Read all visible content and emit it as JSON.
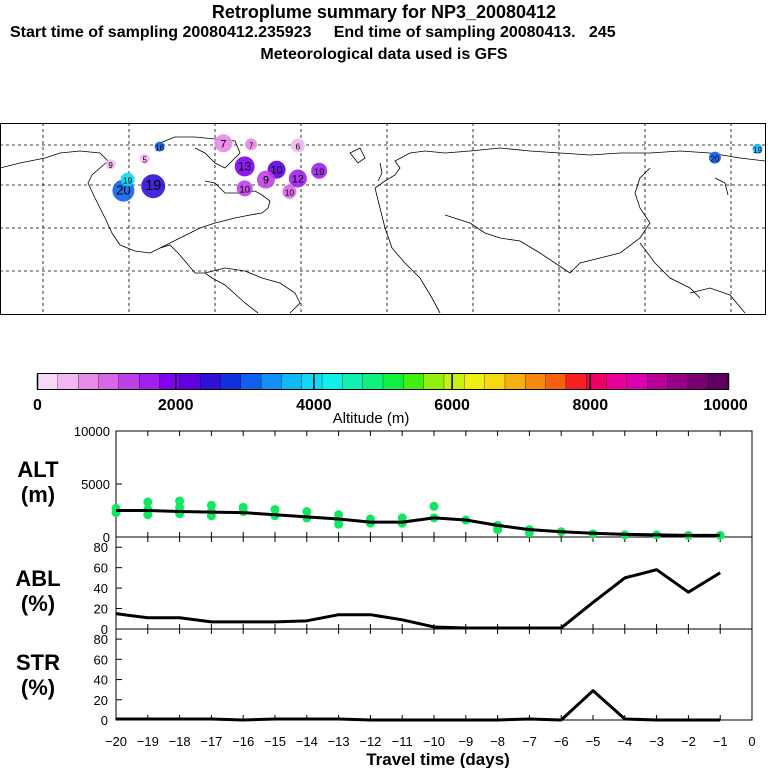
{
  "header": {
    "title": "Retroplume summary for NP3_20080412",
    "subtitle": "Start time of sampling 20080412.235923     End time of sampling 20080413.   245",
    "met_line": "Meteorological data used is GFS"
  },
  "colorbar": {
    "ticks": [
      "0",
      "2000",
      "4000",
      "6000",
      "8000",
      "10000"
    ],
    "label": "Altitude (m)",
    "colors": [
      "#f7d9f7",
      "#f0b8f0",
      "#e88ae8",
      "#d966e6",
      "#c040e8",
      "#a020f0",
      "#8000f0",
      "#6000e0",
      "#3010d8",
      "#1030e0",
      "#1060f0",
      "#1090f8",
      "#10b8f8",
      "#10d8f8",
      "#10f0e8",
      "#10f0b0",
      "#10f080",
      "#10f040",
      "#40f010",
      "#90f010",
      "#c8f010",
      "#f0f010",
      "#f8d810",
      "#f8b010",
      "#f88810",
      "#f86010",
      "#f82020",
      "#f00060",
      "#e80098",
      "#d800b0",
      "#b80098",
      "#980088",
      "#780070",
      "#600060"
    ]
  },
  "map": {
    "markers": [
      {
        "label": "20",
        "color": "#1060f0",
        "lon": -122,
        "lat": 34,
        "r": 11
      },
      {
        "label": "19",
        "color": "#3010d8",
        "lon": -108,
        "lat": 38,
        "r": 12
      },
      {
        "label": "19",
        "color": "#10d8f8",
        "lon": -120,
        "lat": 44,
        "r": 7
      },
      {
        "label": "16",
        "color": "#1060f0",
        "lon": -105,
        "lat": 74,
        "r": 5
      },
      {
        "label": "7",
        "color": "#e88ae8",
        "lon": -75,
        "lat": 77,
        "r": 9
      },
      {
        "label": "7",
        "color": "#e88ae8",
        "lon": -62,
        "lat": 76,
        "r": 6
      },
      {
        "label": "6",
        "color": "#f0b8f0",
        "lon": -40,
        "lat": 75,
        "r": 7
      },
      {
        "label": "9",
        "color": "#f0b8f0",
        "lon": -128,
        "lat": 58,
        "r": 5
      },
      {
        "label": "5",
        "color": "#f0b8f0",
        "lon": -112,
        "lat": 63,
        "r": 5
      },
      {
        "label": "13",
        "color": "#8000f0",
        "lon": -65,
        "lat": 56,
        "r": 10
      },
      {
        "label": "10",
        "color": "#6000e0",
        "lon": -50,
        "lat": 53,
        "r": 9
      },
      {
        "label": "12",
        "color": "#a020f0",
        "lon": -40,
        "lat": 45,
        "r": 9
      },
      {
        "label": "9",
        "color": "#c040e8",
        "lon": -55,
        "lat": 44,
        "r": 9
      },
      {
        "label": "19",
        "color": "#a020f0",
        "lon": -30,
        "lat": 52,
        "r": 8
      },
      {
        "label": "10",
        "color": "#c040e8",
        "lon": -65,
        "lat": 36,
        "r": 8
      },
      {
        "label": "10",
        "color": "#d966e6",
        "lon": -44,
        "lat": 33,
        "r": 7
      },
      {
        "label": "20",
        "color": "#1060f0",
        "lon": 156,
        "lat": 64,
        "r": 6
      },
      {
        "label": "19",
        "color": "#10b8f8",
        "lon": 176,
        "lat": 72,
        "r": 5
      }
    ]
  },
  "panels": {
    "alt_label": "ALT",
    "alt_unit": "(m)",
    "abl_label": "ABL",
    "str_label": "STR",
    "pct_unit": "(%)",
    "alt_ticks": [
      "10000",
      "5000",
      "0"
    ],
    "pct_ticks": [
      "80",
      "60",
      "40",
      "20",
      "0"
    ],
    "x_ticks": [
      "−20",
      "−19",
      "−18",
      "−17",
      "−16",
      "−15",
      "−14",
      "−13",
      "−12",
      "−11",
      "−10",
      "−9",
      "−8",
      "−7",
      "−6",
      "−5",
      "−4",
      "−3",
      "−2",
      "−1",
      "0"
    ],
    "x_title": "Travel time (days)"
  },
  "chart_data": {
    "type": "line",
    "x": [
      -20,
      -19,
      -18,
      -17,
      -16,
      -15,
      -14,
      -13,
      -12,
      -11,
      -10,
      -9,
      -8,
      -7,
      -6,
      -5,
      -4,
      -3,
      -2,
      -1
    ],
    "xlabel": "Travel time (days)",
    "xlim": [
      -20,
      0
    ],
    "series": [
      {
        "name": "ALT",
        "unit": "m",
        "ylim": [
          0,
          10000
        ],
        "values": [
          2500,
          2500,
          2400,
          2350,
          2300,
          2100,
          1900,
          1700,
          1400,
          1400,
          1800,
          1600,
          1100,
          700,
          500,
          350,
          250,
          200,
          150,
          150
        ]
      },
      {
        "name": "ABL",
        "unit": "%",
        "ylim": [
          0,
          90
        ],
        "values": [
          15,
          11,
          11,
          7,
          7,
          7,
          8,
          14,
          14,
          9,
          2,
          1,
          1,
          1,
          1,
          26,
          50,
          58,
          36,
          55
        ]
      },
      {
        "name": "STR",
        "unit": "%",
        "ylim": [
          0,
          90
        ],
        "values": [
          1,
          1,
          1,
          1,
          0,
          1,
          1,
          1,
          0,
          0,
          0,
          0,
          0,
          1,
          0,
          29,
          1,
          0,
          0,
          0
        ]
      }
    ],
    "alt_points": [
      {
        "x": -20,
        "y": 2700
      },
      {
        "x": -20,
        "y": 2300
      },
      {
        "x": -19,
        "y": 3300
      },
      {
        "x": -19,
        "y": 2600
      },
      {
        "x": -19,
        "y": 2100
      },
      {
        "x": -18,
        "y": 3400
      },
      {
        "x": -18,
        "y": 2800
      },
      {
        "x": -18,
        "y": 2200
      },
      {
        "x": -17,
        "y": 3000
      },
      {
        "x": -17,
        "y": 2400
      },
      {
        "x": -17,
        "y": 2000
      },
      {
        "x": -16,
        "y": 2800
      },
      {
        "x": -16,
        "y": 2400
      },
      {
        "x": -15,
        "y": 2600
      },
      {
        "x": -15,
        "y": 2000
      },
      {
        "x": -14,
        "y": 2400
      },
      {
        "x": -14,
        "y": 1800
      },
      {
        "x": -13,
        "y": 2100
      },
      {
        "x": -13,
        "y": 1600
      },
      {
        "x": -13,
        "y": 1200
      },
      {
        "x": -12,
        "y": 1700
      },
      {
        "x": -12,
        "y": 1300
      },
      {
        "x": -11,
        "y": 1800
      },
      {
        "x": -11,
        "y": 1300
      },
      {
        "x": -10,
        "y": 2900
      },
      {
        "x": -10,
        "y": 1800
      },
      {
        "x": -9,
        "y": 1600
      },
      {
        "x": -8,
        "y": 1100
      },
      {
        "x": -8,
        "y": 700
      },
      {
        "x": -7,
        "y": 700
      },
      {
        "x": -7,
        "y": 400
      },
      {
        "x": -6,
        "y": 500
      },
      {
        "x": -5,
        "y": 300
      },
      {
        "x": -4,
        "y": 200
      },
      {
        "x": -3,
        "y": 200
      },
      {
        "x": -2,
        "y": 150
      },
      {
        "x": -1,
        "y": 150
      }
    ],
    "title": "Retroplume summary for NP3_20080412"
  }
}
